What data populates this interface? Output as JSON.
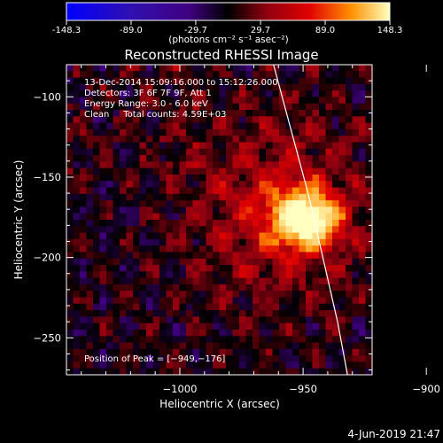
{
  "colorbar": {
    "tick_labels": [
      "-148.3",
      "-89.0",
      "-29.7",
      "29.7",
      "89.0",
      "148.3"
    ],
    "tick_values": [
      -148.3,
      -89.0,
      -29.7,
      29.7,
      89.0,
      148.3
    ],
    "range": [
      -148.3,
      148.3
    ],
    "units": "(photons cm⁻² s⁻¹ asec⁻²)"
  },
  "chart_data": {
    "type": "heatmap",
    "title": "Reconstructed RHESSI Image",
    "xlabel": "Heliocentric X (arcsec)",
    "ylabel": "Heliocentric Y (arcsec)",
    "xlim": [
      -1046,
      -922
    ],
    "ylim": [
      -273,
      -80
    ],
    "x_ticks": [
      -1000,
      -950,
      -900
    ],
    "x_tick_labels": [
      "−1000",
      "−950",
      "−900"
    ],
    "y_ticks": [
      -100,
      -150,
      -200,
      -250
    ],
    "y_tick_labels": [
      "−100",
      "−150",
      "−200",
      "−250"
    ],
    "info_lines": [
      "13-Dec-2014 15:09:16.000 to 15:12:26.000",
      "Detectors: 3F 6F 7F 9F, Att 1",
      "Energy Range: 3.0 - 6.0 keV",
      "Clean     Total counts: 4.59E+03"
    ],
    "peak_label": "Position of Peak = [−949,−176]",
    "peak": {
      "x": -949,
      "y": -176,
      "value": 148.3
    },
    "limb_curve": [
      [
        -962,
        -80
      ],
      [
        -955,
        -120
      ],
      [
        -948,
        -160
      ],
      [
        -942,
        -200
      ],
      [
        -936,
        -240
      ],
      [
        -932,
        -273
      ]
    ],
    "colormap": "blue-purple-red-yellow-white"
  },
  "footer": {
    "timestamp": "4-Jun-2019 21:47"
  }
}
